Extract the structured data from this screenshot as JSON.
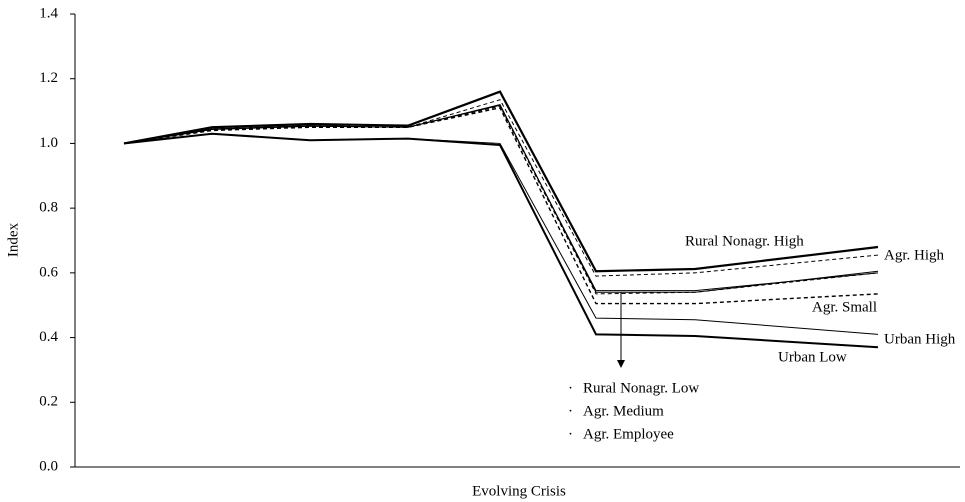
{
  "chart_data": {
    "type": "line",
    "y_label": "Index",
    "x_label": "Evolving Crisis",
    "categories": [
      null,
      null,
      null,
      null,
      null,
      null,
      null,
      null
    ],
    "ylim": [
      0,
      1.4
    ],
    "yticks": [
      {
        "value": 0,
        "label": "0.0"
      },
      0.2,
      0.4,
      0.6,
      0.8,
      {
        "value": 1,
        "label": "1.0"
      },
      1.2,
      1.4
    ],
    "series": [
      {
        "name": "Rural Nonagr. High",
        "color": "#000000",
        "line_width": 2.2,
        "dashed": false,
        "values": [
          1.0,
          1.05,
          1.06,
          1.055,
          1.16,
          0.605,
          0.612,
          0.68
        ]
      },
      {
        "name": "Agr. High",
        "color": "#000000",
        "line_width": 1,
        "dashed": true,
        "values": [
          1.0,
          1.045,
          1.055,
          1.05,
          1.135,
          0.59,
          0.6,
          0.655
        ]
      },
      {
        "name": "Agr. Small",
        "color": "#000000",
        "line_width": 1,
        "dashed": false,
        "values": [
          1.0,
          1.045,
          1.055,
          1.05,
          1.12,
          0.54,
          0.54,
          0.605
        ]
      },
      {
        "name": "Rural Nonagr. Low",
        "color": "#000000",
        "line_width": 1,
        "dashed": false,
        "values": [
          1.0,
          1.043,
          1.053,
          1.05,
          1.118,
          0.545,
          0.545,
          0.6
        ]
      },
      {
        "name": "Agr. Medium",
        "color": "#000000",
        "line_width": 1,
        "dashed": true,
        "values": [
          1.0,
          1.042,
          1.052,
          1.05,
          1.115,
          0.535,
          0.54,
          0.6
        ]
      },
      {
        "name": "Agr. Employee",
        "color": "#000000",
        "line_width": 1.4,
        "dashed": true,
        "values": [
          1.0,
          1.04,
          1.05,
          1.05,
          1.11,
          0.505,
          0.505,
          0.535
        ]
      },
      {
        "name": "Urban High",
        "color": "#000000",
        "line_width": 1,
        "dashed": false,
        "values": [
          1.0,
          1.03,
          1.01,
          1.015,
          1.0,
          0.46,
          0.455,
          0.41
        ]
      },
      {
        "name": "Urban Low",
        "color": "#000000",
        "line_width": 2,
        "dashed": false,
        "values": [
          1.0,
          1.03,
          1.01,
          1.015,
          0.995,
          0.41,
          0.405,
          0.37
        ]
      }
    ]
  }
}
